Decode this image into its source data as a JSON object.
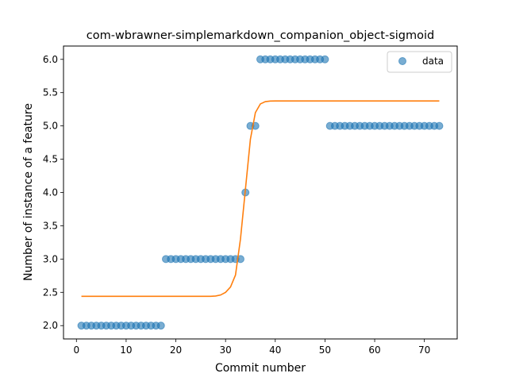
{
  "chart_data": {
    "type": "scatter",
    "title": "com-wbrawner-simplemarkdown_companion_object-sigmoid",
    "xlabel": "Commit number",
    "ylabel": "Number of instance of a feature",
    "xlim": [
      -2.6,
      76.6
    ],
    "ylim": [
      1.8,
      6.2
    ],
    "xticks": [
      0,
      10,
      20,
      30,
      40,
      50,
      60,
      70
    ],
    "yticks": [
      2.0,
      2.5,
      3.0,
      3.5,
      4.0,
      4.5,
      5.0,
      5.5,
      6.0
    ],
    "ytick_labels": [
      "2.0",
      "2.5",
      "3.0",
      "3.5",
      "4.0",
      "4.5",
      "5.0",
      "5.5",
      "6.0"
    ],
    "grid": false,
    "legend": {
      "position": "top-right",
      "entries": [
        "data"
      ]
    },
    "colors": {
      "data": "#1f77b4",
      "fit": "#ff7f0e"
    },
    "series": [
      {
        "name": "data",
        "kind": "scatter",
        "points": [
          [
            1,
            2
          ],
          [
            2,
            2
          ],
          [
            3,
            2
          ],
          [
            4,
            2
          ],
          [
            5,
            2
          ],
          [
            6,
            2
          ],
          [
            7,
            2
          ],
          [
            8,
            2
          ],
          [
            9,
            2
          ],
          [
            10,
            2
          ],
          [
            11,
            2
          ],
          [
            12,
            2
          ],
          [
            13,
            2
          ],
          [
            14,
            2
          ],
          [
            15,
            2
          ],
          [
            16,
            2
          ],
          [
            17,
            2
          ],
          [
            18,
            3
          ],
          [
            19,
            3
          ],
          [
            20,
            3
          ],
          [
            21,
            3
          ],
          [
            22,
            3
          ],
          [
            23,
            3
          ],
          [
            24,
            3
          ],
          [
            25,
            3
          ],
          [
            26,
            3
          ],
          [
            27,
            3
          ],
          [
            28,
            3
          ],
          [
            29,
            3
          ],
          [
            30,
            3
          ],
          [
            31,
            3
          ],
          [
            32,
            3
          ],
          [
            33,
            3
          ],
          [
            34,
            4
          ],
          [
            35,
            5
          ],
          [
            36,
            5
          ],
          [
            37,
            6
          ],
          [
            38,
            6
          ],
          [
            39,
            6
          ],
          [
            40,
            6
          ],
          [
            41,
            6
          ],
          [
            42,
            6
          ],
          [
            43,
            6
          ],
          [
            44,
            6
          ],
          [
            45,
            6
          ],
          [
            46,
            6
          ],
          [
            47,
            6
          ],
          [
            48,
            6
          ],
          [
            49,
            6
          ],
          [
            50,
            6
          ],
          [
            51,
            5
          ],
          [
            52,
            5
          ],
          [
            53,
            5
          ],
          [
            54,
            5
          ],
          [
            55,
            5
          ],
          [
            56,
            5
          ],
          [
            57,
            5
          ],
          [
            58,
            5
          ],
          [
            59,
            5
          ],
          [
            60,
            5
          ],
          [
            61,
            5
          ],
          [
            62,
            5
          ],
          [
            63,
            5
          ],
          [
            64,
            5
          ],
          [
            65,
            5
          ],
          [
            66,
            5
          ],
          [
            67,
            5
          ],
          [
            68,
            5
          ],
          [
            69,
            5
          ],
          [
            70,
            5
          ],
          [
            71,
            5
          ],
          [
            72,
            5
          ],
          [
            73,
            5
          ]
        ]
      },
      {
        "kind": "line",
        "points": [
          [
            1,
            2.44
          ],
          [
            10,
            2.44
          ],
          [
            20,
            2.44
          ],
          [
            27,
            2.44
          ],
          [
            28,
            2.445
          ],
          [
            29,
            2.46
          ],
          [
            30,
            2.5
          ],
          [
            31,
            2.58
          ],
          [
            32,
            2.76
          ],
          [
            33,
            3.3
          ],
          [
            34,
            4.05
          ],
          [
            35,
            4.8
          ],
          [
            36,
            5.2
          ],
          [
            37,
            5.33
          ],
          [
            38,
            5.365
          ],
          [
            39,
            5.373
          ],
          [
            40,
            5.375
          ],
          [
            45,
            5.375
          ],
          [
            50,
            5.375
          ],
          [
            60,
            5.375
          ],
          [
            70,
            5.375
          ],
          [
            73,
            5.375
          ]
        ]
      }
    ]
  }
}
